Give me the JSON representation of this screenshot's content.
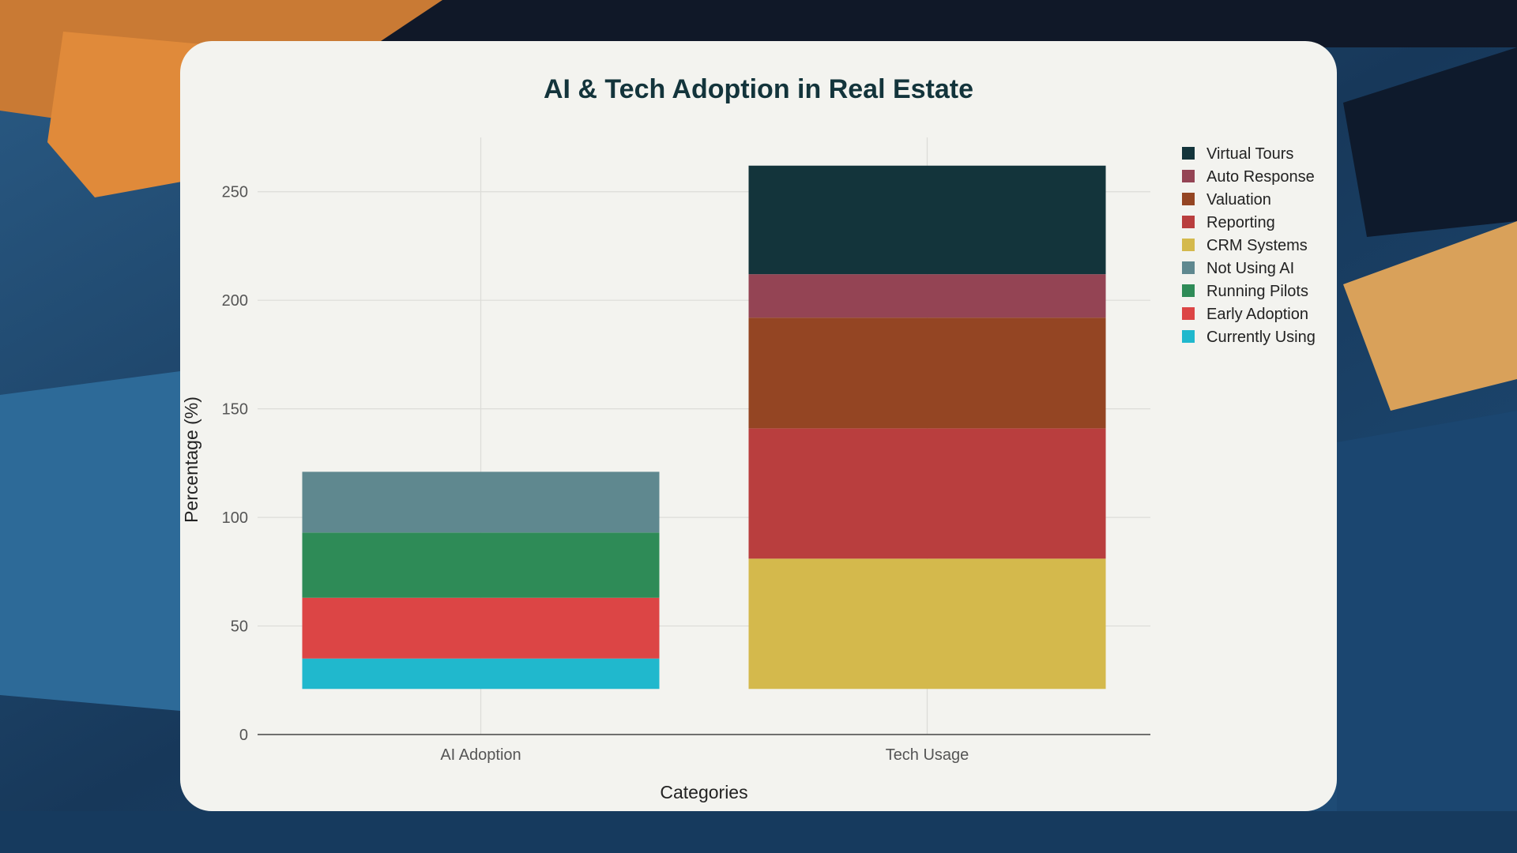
{
  "chart_data": {
    "type": "bar",
    "stacked": true,
    "title": "AI & Tech Adoption in Real Estate",
    "xlabel": "Categories",
    "ylabel": "Percentage (%)",
    "categories": [
      "AI Adoption",
      "Tech Usage"
    ],
    "ylim": [
      0,
      275
    ],
    "yticks": [
      0,
      50,
      100,
      150,
      200,
      250
    ],
    "base": 21,
    "grid": true,
    "legend_position": "top-right",
    "series": [
      {
        "name": "Currently Using",
        "color": "#20b8cd",
        "values": [
          14,
          0
        ]
      },
      {
        "name": "Early Adoption",
        "color": "#dc4545",
        "values": [
          28,
          0
        ]
      },
      {
        "name": "Running Pilots",
        "color": "#2e8b57",
        "values": [
          30,
          0
        ]
      },
      {
        "name": "Not Using AI",
        "color": "#5f888f",
        "values": [
          28,
          0
        ]
      },
      {
        "name": "CRM Systems",
        "color": "#d4b94c",
        "values": [
          0,
          60
        ]
      },
      {
        "name": "Reporting",
        "color": "#b93e3e",
        "values": [
          0,
          60
        ]
      },
      {
        "name": "Valuation",
        "color": "#944523",
        "values": [
          0,
          51
        ]
      },
      {
        "name": "Auto Response",
        "color": "#944454",
        "values": [
          0,
          20
        ]
      },
      {
        "name": "Virtual Tours",
        "color": "#13343b",
        "values": [
          0,
          50
        ]
      }
    ]
  }
}
